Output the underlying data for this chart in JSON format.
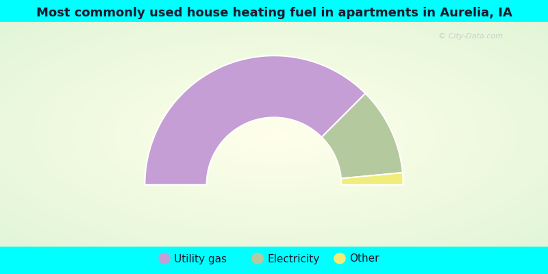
{
  "title": "Most commonly used house heating fuel in apartments in Aurelia, IA",
  "title_fontsize": 13,
  "title_color": "#1a1a2e",
  "segments": [
    {
      "label": "Utility gas",
      "value": 75,
      "color": "#c49ed4"
    },
    {
      "label": "Electricity",
      "value": 22,
      "color": "#b5c99e"
    },
    {
      "label": "Other",
      "value": 3,
      "color": "#f0ed7a"
    }
  ],
  "background_top": "#00ffff",
  "background_bottom": "#00ffff",
  "legend_fontsize": 11,
  "watermark": "City-Data.com",
  "watermark_color": "#c0c0c0",
  "outer_r": 1.15,
  "inner_r": 0.6
}
